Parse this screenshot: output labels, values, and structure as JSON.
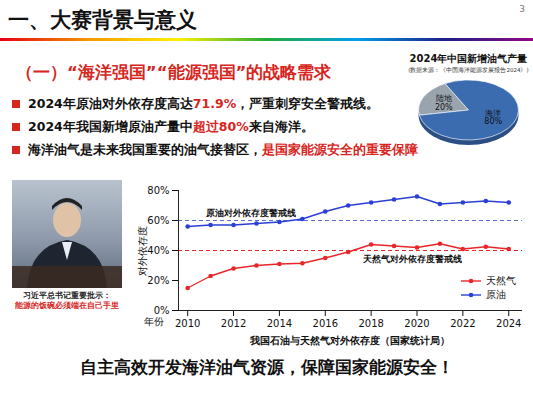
{
  "slide": {
    "header": "一、大赛背景与意义",
    "page_number": "3",
    "section_title": "（一）“海洋强国”“能源强国”的战略需求",
    "bullets": [
      [
        {
          "text": "2024年原油对外依存度高达"
        },
        {
          "text": "71.9%",
          "emphasis": true
        },
        {
          "text": "，严重刺穿安全警戒线。"
        }
      ],
      [
        {
          "text": "2024年我国新增原油产量中"
        },
        {
          "text": "超过80%",
          "emphasis": true
        },
        {
          "text": "来自海洋。"
        }
      ],
      [
        {
          "text": "海洋油气是未来我国重要的油气接替区，"
        },
        {
          "text": "是国家能源安全的重要保障",
          "emphasis": true
        }
      ]
    ],
    "photo_caption": [
      "习近平总书记重要批示：",
      "能源的饭碗必须端在自己手里"
    ],
    "footer": "自主高效开发海洋油气资源，保障国家能源安全！"
  },
  "chart_data": [
    {
      "type": "line",
      "caption": "我国石油与天然气对外依存度（国家统计局）",
      "x_label": "年份",
      "y_label": "对外依存度",
      "x": [
        2010,
        2011,
        2012,
        2013,
        2014,
        2015,
        2016,
        2017,
        2018,
        2019,
        2020,
        2021,
        2022,
        2023,
        2024
      ],
      "series": [
        {
          "name": "天然气",
          "color": "#e8262a",
          "marker": "circle",
          "values": [
            15,
            23,
            28,
            30,
            31,
            31.5,
            35,
            39,
            44,
            43,
            42,
            44.5,
            41,
            42.5,
            41
          ]
        },
        {
          "name": "原油",
          "color": "#2a3fd6",
          "marker": "circle",
          "values": [
            56,
            57,
            57,
            58,
            59,
            61,
            66,
            70,
            72,
            74,
            76,
            71,
            72,
            73,
            72
          ]
        }
      ],
      "xlim": [
        2009.6,
        2024.6
      ],
      "xticks": [
        2010,
        2012,
        2014,
        2016,
        2018,
        2020,
        2022,
        2024
      ],
      "ylim": [
        0,
        80
      ],
      "yticks": [
        {
          "value": 0,
          "label": "0%"
        },
        {
          "value": 20,
          "label": "20%"
        },
        {
          "value": 40,
          "label": "40%"
        },
        {
          "value": 60,
          "label": "60%"
        },
        {
          "value": 80,
          "label": "80%"
        }
      ],
      "reference_lines": [
        {
          "value": 60,
          "label": "原油对外依存度警戒线",
          "color": "#5a6fd6",
          "line_style": "dashed"
        },
        {
          "value": 40,
          "label": "天然气对外依存度警戒线",
          "color": "#e8262a",
          "line_style": "dashed"
        }
      ],
      "legend": "lower right",
      "grid": false
    },
    {
      "type": "pie",
      "title": "2024年中国新增油气产量",
      "subtitle": "(数据来源：《中国海洋能源发展报告2024》)",
      "categories": [
        "陆地",
        "海洋"
      ],
      "values": [
        20,
        80
      ],
      "value_labels": [
        "20%",
        "80%"
      ],
      "colors": [
        "#9aa4ae",
        "#3b6cb0"
      ],
      "data_labels": true
    }
  ]
}
